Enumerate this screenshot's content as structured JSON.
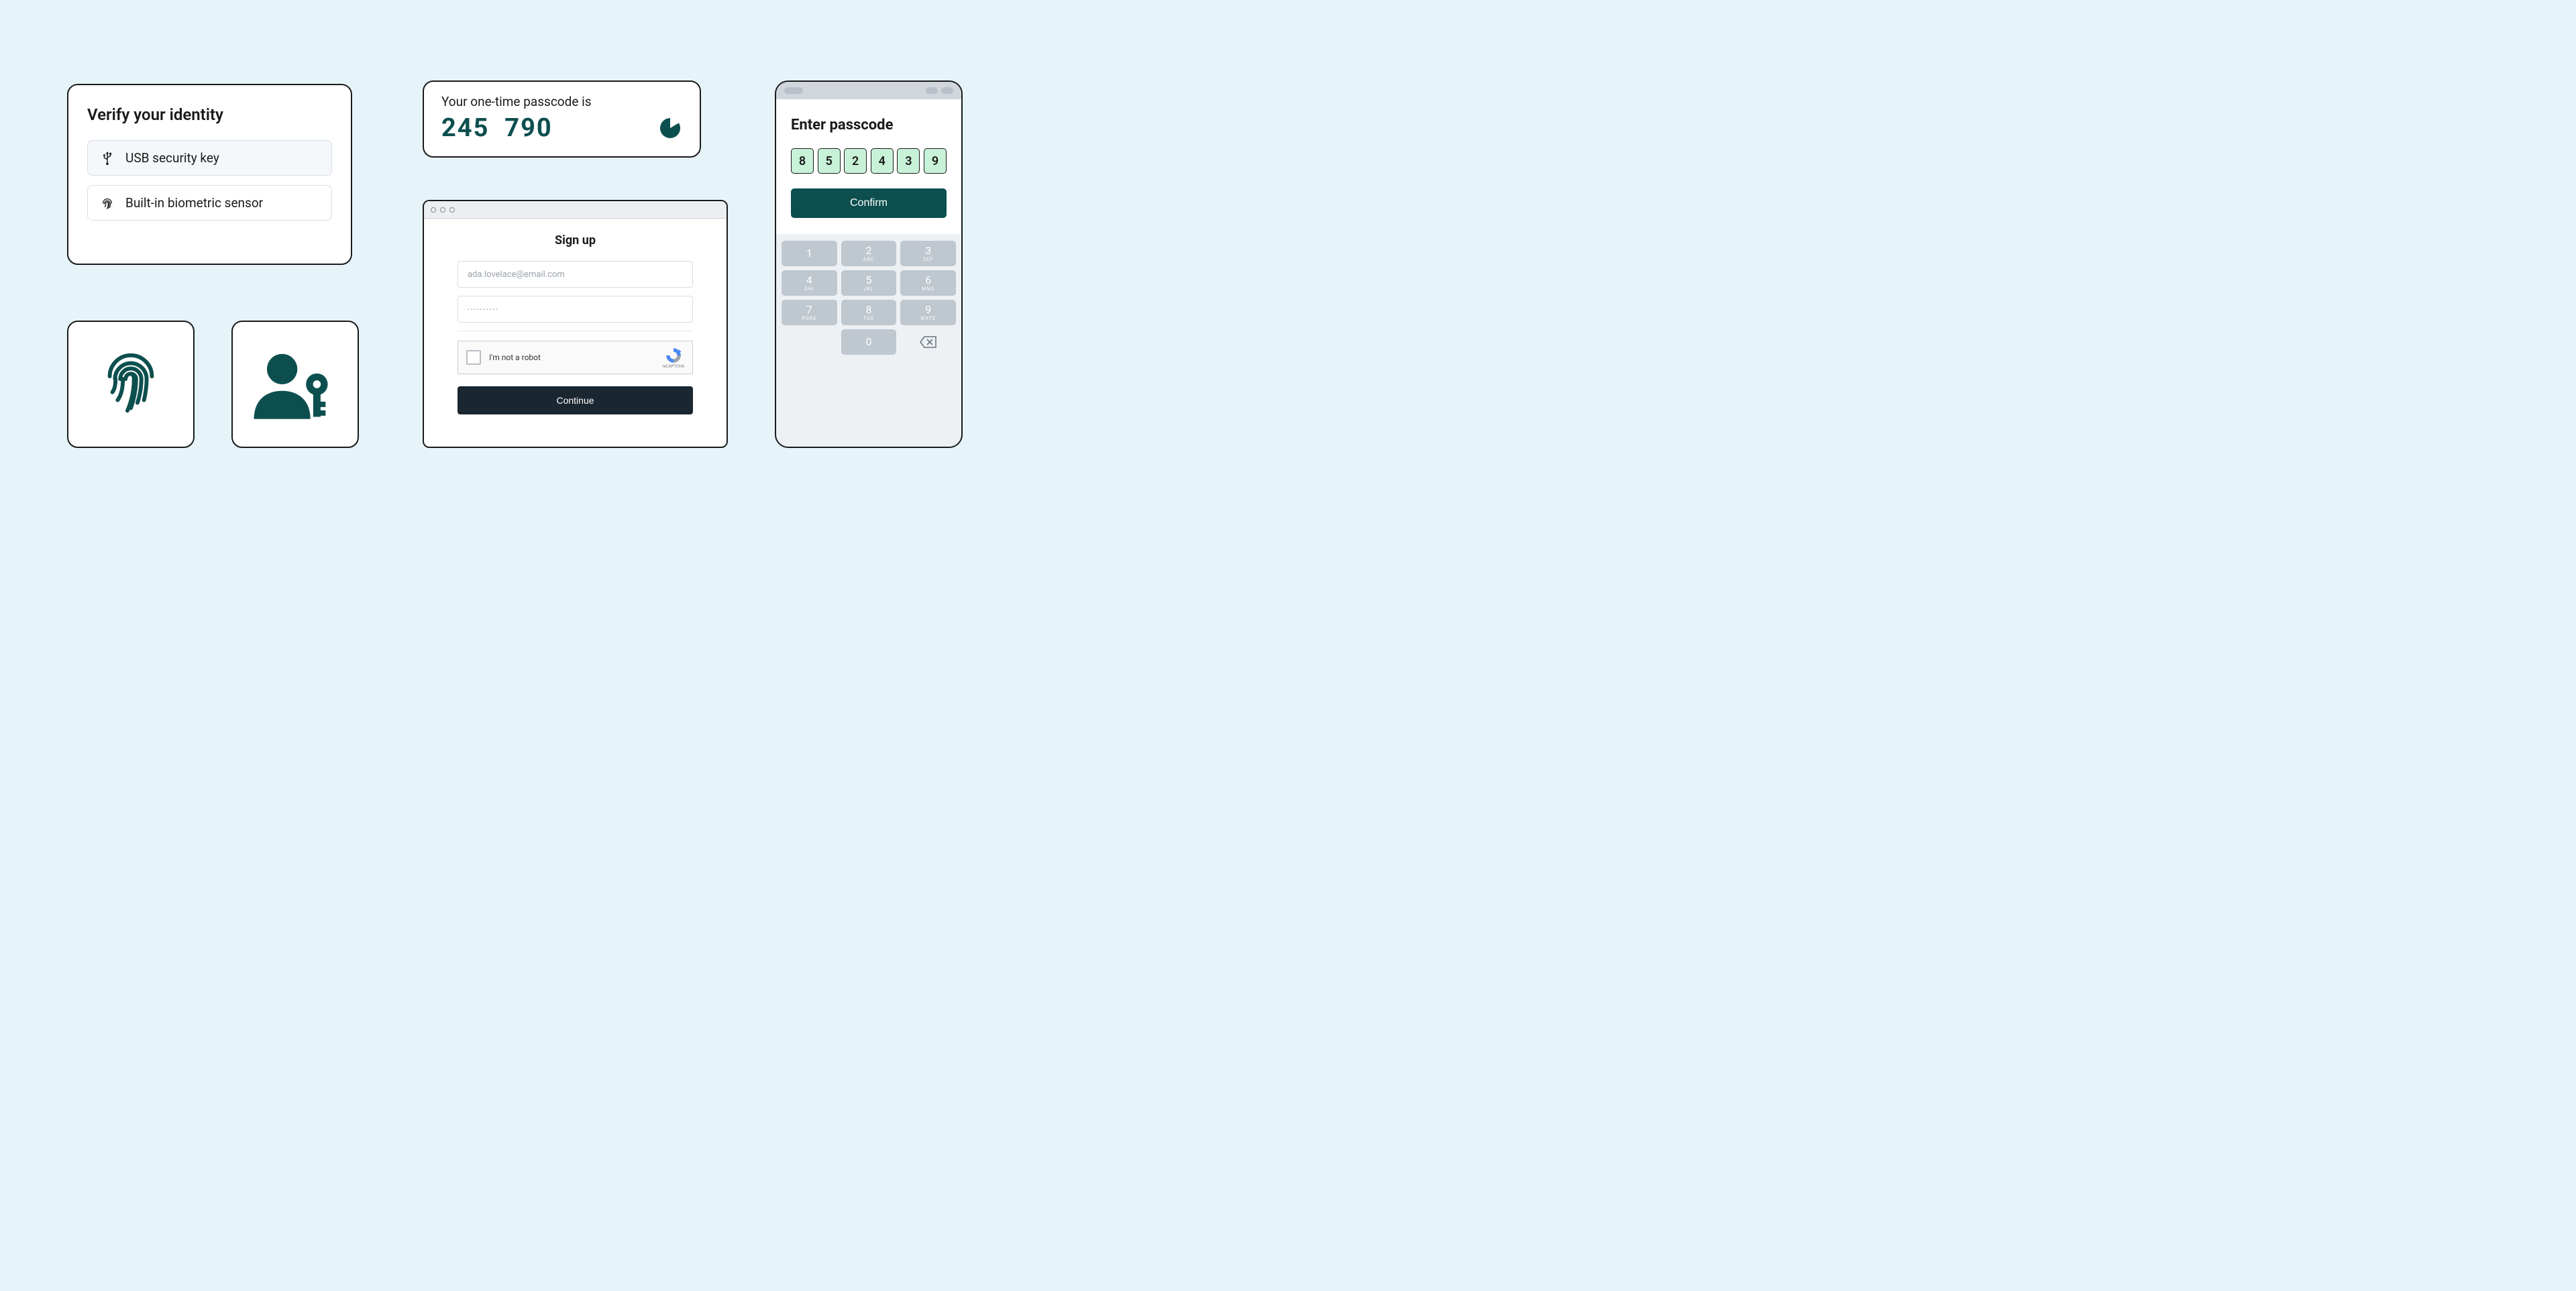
{
  "colors": {
    "bg": "#e6f4fa",
    "card_bg": "#ffffff",
    "border": "#1a1a1a",
    "teal": "#0d4f4f",
    "code_box_bg": "#c8f2d8",
    "input_border": "#d8dde2",
    "keypad_key": "#bfc7cf",
    "phone_bg": "#eef1f4",
    "signup_btn": "#1a2630"
  },
  "verify": {
    "title": "Verify your identity",
    "options": [
      {
        "icon": "usb",
        "label": "USB security key",
        "selected": true
      },
      {
        "icon": "fingerprint",
        "label": "Built-in biometric sensor",
        "selected": false
      }
    ]
  },
  "otp": {
    "label": "Your one-time passcode is",
    "code_part1": "245",
    "code_part2": "790",
    "timer_fraction": 0.7
  },
  "signup": {
    "title": "Sign up",
    "email_placeholder": "ada.lovelace@email.com",
    "password_placeholder": "••••••••••",
    "captcha_label": "I'm not a robot",
    "captcha_brand": "reCAPTCHA",
    "button": "Continue"
  },
  "phone": {
    "title": "Enter passcode",
    "code": [
      "8",
      "5",
      "2",
      "4",
      "3",
      "9"
    ],
    "confirm": "Confirm",
    "keypad": [
      [
        {
          "n": "1",
          "s": ""
        },
        {
          "n": "2",
          "s": "ABC"
        },
        {
          "n": "3",
          "s": "DEF"
        }
      ],
      [
        {
          "n": "4",
          "s": "GHI"
        },
        {
          "n": "5",
          "s": "JKL"
        },
        {
          "n": "6",
          "s": "MNO"
        }
      ],
      [
        {
          "n": "7",
          "s": "PQRS"
        },
        {
          "n": "8",
          "s": "TUV"
        },
        {
          "n": "9",
          "s": "WXYZ"
        }
      ]
    ],
    "zero": {
      "n": "0",
      "s": ""
    }
  }
}
